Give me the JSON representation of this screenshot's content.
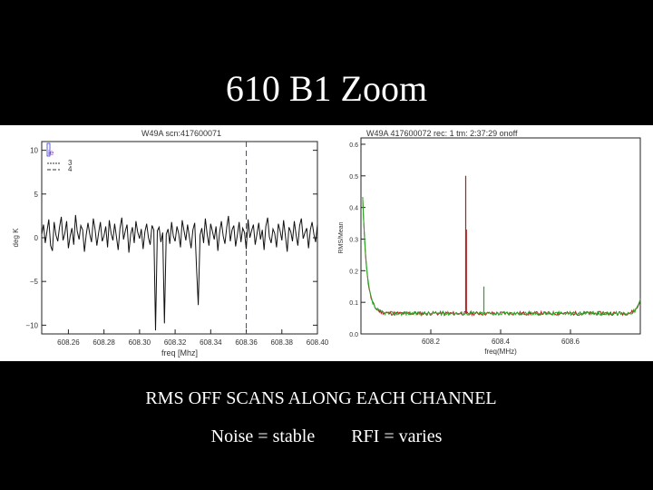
{
  "slide": {
    "title": "610 B1 Zoom",
    "caption_line1": "RMS OFF SCANS ALONG EACH CHANNEL",
    "caption_noise": "Noise = stable",
    "caption_rfi": "RFI = varies"
  },
  "chart_data": [
    {
      "type": "line",
      "title": "W49A scn:417600071",
      "xlabel": "freq [Mhz]",
      "ylabel": "deg K",
      "xlim": [
        608.245,
        608.4
      ],
      "ylim": [
        -11,
        11
      ],
      "xticks": [
        "608.26",
        "608.28",
        "608.30",
        "608.32",
        "608.34",
        "608.36",
        "608.38",
        "608.40"
      ],
      "xtick_values": [
        608.26,
        608.28,
        608.3,
        608.32,
        608.34,
        608.36,
        608.38,
        608.4
      ],
      "yticks": [
        "10",
        "5",
        "0",
        "−5",
        "−10"
      ],
      "ytick_values": [
        10,
        5,
        0,
        -5,
        -10
      ],
      "legend": {
        "position": "top-left",
        "entries": [
          "3",
          "4"
        ],
        "fragment": "ie"
      },
      "vline_x": 608.36,
      "colors": {
        "line": "#111111",
        "vline": "#3b3bd0"
      },
      "series": [
        {
          "x_start": 608.245,
          "x_step": 0.001,
          "values": [
            0.4,
            1.5,
            -0.6,
            0.8,
            2.1,
            -0.9,
            -1.5,
            1.8,
            0.3,
            -0.4,
            1.2,
            2.4,
            -0.3,
            0.5,
            1.9,
            -1.2,
            0.2,
            1.1,
            -0.8,
            2.6,
            0.7,
            -0.2,
            1.4,
            0.9,
            -1.6,
            0.3,
            1.7,
            0.4,
            -0.5,
            2.2,
            1.0,
            -0.9,
            0.6,
            1.8,
            -0.4,
            0.2,
            1.3,
            -1.1,
            2.0,
            0.5,
            -0.3,
            1.6,
            0.1,
            -1.4,
            1.1,
            2.3,
            -0.2,
            0.8,
            1.5,
            -1.7,
            0.4,
            1.2,
            -0.6,
            1.9,
            0.6,
            -0.1,
            1.0,
            -1.3,
            0.7,
            1.6,
            0.0,
            -0.8,
            1.4,
            0.9,
            -10.6,
            0.8,
            1.2,
            -0.5,
            0.6,
            -9.8,
            0.4,
            1.0,
            -0.7,
            1.8,
            0.2,
            -0.4,
            1.3,
            0.5,
            -1.1,
            2.0,
            0.8,
            -0.3,
            1.5,
            0.1,
            -1.2,
            0.9,
            1.7,
            -3.2,
            -7.7,
            0.3,
            1.1,
            -0.6,
            2.2,
            0.4,
            -0.9,
            1.6,
            0.7,
            -0.2,
            1.3,
            -1.5,
            0.6,
            1.9,
            0.2,
            -0.7,
            1.2,
            2.5,
            -0.4,
            0.9,
            1.4,
            -1.0,
            0.3,
            1.8,
            -0.5,
            1.1,
            0.6,
            -1.3,
            2.1,
            0.0,
            0.8,
            1.5,
            -0.8,
            0.4,
            1.7,
            -0.2,
            0.9,
            -1.4,
            1.3,
            2.3,
            0.1,
            -0.6,
            1.0,
            0.5,
            -1.1,
            1.6,
            0.8,
            -0.3,
            2.0,
            0.2,
            -1.6,
            1.2,
            0.7,
            -0.4,
            1.9,
            0.3,
            -0.9,
            1.4,
            2.2,
            -0.1,
            0.6,
            1.1,
            -1.2,
            0.9,
            1.8,
            0.4,
            -0.5,
            1.5,
            0.0
          ]
        }
      ]
    },
    {
      "type": "line",
      "title": "W49A 417600072 rec:   1 tm: 2:37:29 onoff",
      "xlabel": "freq(MHz)",
      "ylabel": "RMS/Mean",
      "xlim": [
        608.0,
        608.8
      ],
      "ylim": [
        0,
        0.62
      ],
      "xticks": [
        "608.2",
        "608.4",
        "608.6"
      ],
      "xtick_values": [
        608.2,
        608.4,
        608.6
      ],
      "yticks": [
        "0.6",
        "0.5",
        "0.4",
        "0.3",
        "0.2",
        "0.1",
        "0.0"
      ],
      "ytick_values": [
        0.6,
        0.5,
        0.4,
        0.3,
        0.2,
        0.1,
        0.0
      ],
      "colors": {
        "green": "#22aa22",
        "red": "#b02020"
      },
      "series": [
        {
          "name": "",
          "color": "#b02020",
          "spikes": [
            {
              "x": 608.3,
              "y": 0.5
            },
            {
              "x": 608.302,
              "y": 0.33
            }
          ]
        },
        {
          "name": "",
          "color": "#22aa22",
          "spikes": [
            {
              "x": 608.352,
              "y": 0.15
            }
          ]
        }
      ],
      "baseline": 0.065,
      "left_edge_peak": 0.62,
      "right_edge_peak": 0.11
    }
  ]
}
